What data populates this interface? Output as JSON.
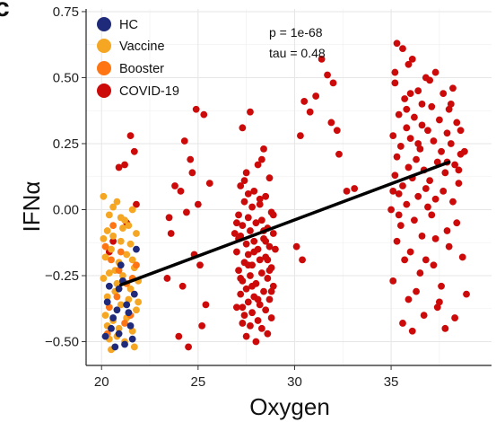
{
  "panel_letter": "c",
  "chart_data": {
    "type": "scatter",
    "xlabel": "Oxygen",
    "ylabel": "IFNα",
    "xlim": [
      19.2,
      40.2
    ],
    "ylim": [
      -0.59,
      0.76
    ],
    "x_ticks": [
      20,
      25,
      30,
      35
    ],
    "y_ticks": [
      -0.5,
      -0.25,
      0.0,
      0.25,
      0.5,
      0.75
    ],
    "y_tick_labels": [
      "−0.50",
      "−0.25",
      "0.00",
      "0.25",
      "0.50",
      "0.75"
    ],
    "grid": true,
    "legend_position": "top-left",
    "annotations": [
      "p = 1e-68",
      "tau = 0.48"
    ],
    "series": [
      {
        "name": "HC",
        "color": "#1f2a7a",
        "points": [
          [
            20.3,
            -0.35
          ],
          [
            20.6,
            -0.41
          ],
          [
            20.9,
            -0.47
          ],
          [
            21.2,
            -0.51
          ],
          [
            20.4,
            -0.29
          ],
          [
            21.5,
            -0.44
          ],
          [
            20.8,
            -0.38
          ],
          [
            21.7,
            -0.32
          ],
          [
            20.2,
            -0.48
          ],
          [
            21.1,
            -0.27
          ],
          [
            20.7,
            -0.52
          ],
          [
            21.4,
            -0.39
          ],
          [
            21.8,
            -0.15
          ],
          [
            21.0,
            -0.21
          ],
          [
            20.5,
            -0.45
          ],
          [
            21.6,
            -0.49
          ],
          [
            21.3,
            -0.36
          ],
          [
            20.9,
            -0.3
          ]
        ]
      },
      {
        "name": "Vaccine",
        "color": "#f5a623",
        "points": [
          [
            20.1,
            0.05
          ],
          [
            20.4,
            -0.02
          ],
          [
            20.8,
            0.03
          ],
          [
            21.2,
            -0.04
          ],
          [
            21.6,
            0.0
          ],
          [
            20.3,
            -0.08
          ],
          [
            20.6,
            -0.1
          ],
          [
            21.0,
            -0.12
          ],
          [
            21.4,
            -0.06
          ],
          [
            21.8,
            -0.09
          ],
          [
            20.2,
            -0.18
          ],
          [
            20.5,
            -0.15
          ],
          [
            20.9,
            -0.2
          ],
          [
            21.3,
            -0.17
          ],
          [
            21.7,
            -0.22
          ],
          [
            20.1,
            -0.26
          ],
          [
            20.4,
            -0.24
          ],
          [
            20.8,
            -0.28
          ],
          [
            21.1,
            -0.25
          ],
          [
            21.5,
            -0.3
          ],
          [
            21.9,
            -0.27
          ],
          [
            20.3,
            -0.33
          ],
          [
            20.7,
            -0.31
          ],
          [
            21.0,
            -0.36
          ],
          [
            21.4,
            -0.34
          ],
          [
            21.8,
            -0.38
          ],
          [
            20.2,
            -0.4
          ],
          [
            20.6,
            -0.42
          ],
          [
            20.9,
            -0.45
          ],
          [
            21.3,
            -0.41
          ],
          [
            21.6,
            -0.46
          ],
          [
            20.4,
            -0.49
          ],
          [
            20.8,
            -0.48
          ],
          [
            21.2,
            -0.5
          ],
          [
            21.7,
            -0.52
          ],
          [
            20.5,
            -0.53
          ],
          [
            21.0,
            -0.03
          ],
          [
            20.6,
            0.01
          ],
          [
            21.5,
            -0.13
          ],
          [
            20.1,
            -0.11
          ],
          [
            21.9,
            -0.35
          ],
          [
            20.3,
            -0.44
          ],
          [
            21.1,
            -0.07
          ],
          [
            20.7,
            -0.23
          ],
          [
            21.6,
            -0.19
          ]
        ]
      },
      {
        "name": "Booster",
        "color": "#ff7514",
        "points": [
          [
            20.2,
            -0.14
          ],
          [
            20.5,
            -0.19
          ],
          [
            20.9,
            -0.23
          ],
          [
            21.3,
            -0.28
          ],
          [
            21.7,
            -0.32
          ],
          [
            20.4,
            -0.37
          ],
          [
            20.8,
            -0.33
          ],
          [
            21.2,
            -0.43
          ],
          [
            21.6,
            -0.26
          ],
          [
            20.3,
            -0.47
          ],
          [
            21.0,
            -0.16
          ],
          [
            21.5,
            -0.4
          ],
          [
            20.6,
            -0.06
          ],
          [
            21.8,
            -0.21
          ]
        ]
      },
      {
        "name": "COVID-19",
        "color": "#cc0a0a",
        "points": [
          [
            21.5,
            0.28
          ],
          [
            21.2,
            0.17
          ],
          [
            20.9,
            0.16
          ],
          [
            21.7,
            0.22
          ],
          [
            20.6,
            -0.12
          ],
          [
            21.8,
            0.02
          ],
          [
            20.4,
            -0.16
          ],
          [
            21.3,
            -0.05
          ],
          [
            24.9,
            0.38
          ],
          [
            24.3,
            0.26
          ],
          [
            24.6,
            0.19
          ],
          [
            25.3,
            0.36
          ],
          [
            23.8,
            0.09
          ],
          [
            24.1,
            0.07
          ],
          [
            25.0,
            0.02
          ],
          [
            25.6,
            0.1
          ],
          [
            24.4,
            -0.01
          ],
          [
            23.6,
            -0.09
          ],
          [
            24.8,
            -0.17
          ],
          [
            25.1,
            -0.21
          ],
          [
            23.4,
            -0.26
          ],
          [
            24.2,
            -0.29
          ],
          [
            25.4,
            -0.36
          ],
          [
            24.0,
            -0.48
          ],
          [
            24.5,
            -0.52
          ],
          [
            25.2,
            -0.44
          ],
          [
            23.5,
            -0.03
          ],
          [
            24.7,
            0.14
          ],
          [
            27.7,
            0.37
          ],
          [
            27.3,
            0.31
          ],
          [
            28.4,
            0.23
          ],
          [
            28.1,
            0.17
          ],
          [
            27.5,
            0.14
          ],
          [
            28.7,
            0.12
          ],
          [
            27.2,
            0.09
          ],
          [
            27.9,
            0.07
          ],
          [
            28.5,
            0.05
          ],
          [
            27.4,
            0.03
          ],
          [
            28.2,
            0.02
          ],
          [
            27.8,
            0.01
          ],
          [
            28.8,
            -0.01
          ],
          [
            27.1,
            -0.02
          ],
          [
            27.6,
            -0.03
          ],
          [
            28.3,
            -0.04
          ],
          [
            28.0,
            -0.05
          ],
          [
            27.3,
            -0.06
          ],
          [
            28.6,
            -0.07
          ],
          [
            27.7,
            -0.08
          ],
          [
            28.9,
            -0.09
          ],
          [
            27.2,
            -0.1
          ],
          [
            28.4,
            -0.11
          ],
          [
            27.9,
            -0.12
          ],
          [
            27.5,
            -0.13
          ],
          [
            28.7,
            -0.14
          ],
          [
            28.1,
            -0.15
          ],
          [
            27.0,
            -0.16
          ],
          [
            27.6,
            -0.17
          ],
          [
            28.5,
            -0.18
          ],
          [
            28.2,
            -0.19
          ],
          [
            27.4,
            -0.2
          ],
          [
            27.8,
            -0.21
          ],
          [
            28.8,
            -0.22
          ],
          [
            27.1,
            -0.23
          ],
          [
            28.3,
            -0.24
          ],
          [
            27.7,
            -0.25
          ],
          [
            28.6,
            -0.26
          ],
          [
            27.3,
            -0.27
          ],
          [
            28.0,
            -0.28
          ],
          [
            28.9,
            -0.29
          ],
          [
            27.5,
            -0.3
          ],
          [
            28.4,
            -0.31
          ],
          [
            27.2,
            -0.32
          ],
          [
            27.9,
            -0.33
          ],
          [
            28.7,
            -0.34
          ],
          [
            27.6,
            -0.35
          ],
          [
            28.2,
            -0.36
          ],
          [
            27.0,
            -0.37
          ],
          [
            28.5,
            -0.38
          ],
          [
            27.8,
            -0.39
          ],
          [
            27.4,
            -0.4
          ],
          [
            28.8,
            -0.41
          ],
          [
            28.1,
            -0.42
          ],
          [
            27.3,
            -0.43
          ],
          [
            27.7,
            -0.44
          ],
          [
            28.3,
            -0.45
          ],
          [
            28.6,
            -0.47
          ],
          [
            27.5,
            -0.48
          ],
          [
            28.0,
            -0.5
          ],
          [
            28.9,
            -0.02
          ],
          [
            27.1,
            -0.11
          ],
          [
            28.6,
            -0.19
          ],
          [
            27.6,
            0.06
          ],
          [
            28.4,
            -0.08
          ],
          [
            27.2,
            -0.26
          ],
          [
            28.1,
            -0.34
          ],
          [
            27.9,
            -0.16
          ],
          [
            28.7,
            -0.23
          ],
          [
            27.4,
            0.11
          ],
          [
            28.3,
            0.19
          ],
          [
            27.0,
            -0.05
          ],
          [
            27.8,
            -0.29
          ],
          [
            28.5,
            -0.12
          ],
          [
            27.3,
            -0.37
          ],
          [
            28.2,
            0.04
          ],
          [
            27.6,
            -0.21
          ],
          [
            28.8,
            -0.31
          ],
          [
            29.0,
            -0.15
          ],
          [
            26.9,
            -0.09
          ],
          [
            31.4,
            0.57
          ],
          [
            31.7,
            0.51
          ],
          [
            31.1,
            0.43
          ],
          [
            32.0,
            0.48
          ],
          [
            30.5,
            0.41
          ],
          [
            30.8,
            0.37
          ],
          [
            30.3,
            0.28
          ],
          [
            31.9,
            0.33
          ],
          [
            32.3,
            0.21
          ],
          [
            32.7,
            0.07
          ],
          [
            33.1,
            0.08
          ],
          [
            30.1,
            -0.14
          ],
          [
            30.4,
            -0.19
          ],
          [
            32.2,
            0.3
          ],
          [
            35.3,
            0.63
          ],
          [
            35.6,
            0.61
          ],
          [
            36.1,
            0.57
          ],
          [
            35.9,
            0.55
          ],
          [
            36.8,
            0.5
          ],
          [
            37.3,
            0.52
          ],
          [
            35.2,
            0.48
          ],
          [
            36.4,
            0.45
          ],
          [
            37.7,
            0.44
          ],
          [
            38.2,
            0.46
          ],
          [
            35.7,
            0.42
          ],
          [
            36.6,
            0.4
          ],
          [
            37.1,
            0.39
          ],
          [
            38.0,
            0.38
          ],
          [
            35.4,
            0.36
          ],
          [
            36.2,
            0.35
          ],
          [
            37.5,
            0.34
          ],
          [
            38.4,
            0.33
          ],
          [
            35.8,
            0.31
          ],
          [
            36.9,
            0.3
          ],
          [
            37.9,
            0.29
          ],
          [
            35.1,
            0.28
          ],
          [
            36.0,
            0.27
          ],
          [
            37.2,
            0.26
          ],
          [
            38.1,
            0.25
          ],
          [
            35.5,
            0.24
          ],
          [
            36.5,
            0.23
          ],
          [
            37.6,
            0.22
          ],
          [
            38.6,
            0.21
          ],
          [
            35.3,
            0.2
          ],
          [
            36.3,
            0.19
          ],
          [
            37.4,
            0.18
          ],
          [
            38.3,
            0.17
          ],
          [
            35.9,
            0.16
          ],
          [
            36.7,
            0.15
          ],
          [
            37.8,
            0.14
          ],
          [
            35.2,
            0.13
          ],
          [
            36.1,
            0.12
          ],
          [
            37.0,
            0.11
          ],
          [
            38.5,
            0.1
          ],
          [
            35.6,
            0.09
          ],
          [
            36.8,
            0.08
          ],
          [
            37.7,
            0.07
          ],
          [
            35.4,
            0.06
          ],
          [
            36.4,
            0.05
          ],
          [
            37.3,
            0.04
          ],
          [
            38.2,
            0.03
          ],
          [
            35.8,
            0.02
          ],
          [
            36.9,
            0.01
          ],
          [
            35.0,
            0.0
          ],
          [
            37.1,
            -0.02
          ],
          [
            36.2,
            -0.04
          ],
          [
            35.5,
            -0.06
          ],
          [
            37.9,
            -0.08
          ],
          [
            36.6,
            -0.1
          ],
          [
            35.3,
            -0.12
          ],
          [
            38.0,
            -0.14
          ],
          [
            36.0,
            -0.16
          ],
          [
            35.7,
            -0.19
          ],
          [
            37.2,
            -0.21
          ],
          [
            36.5,
            -0.24
          ],
          [
            35.1,
            -0.27
          ],
          [
            37.6,
            -0.29
          ],
          [
            36.3,
            -0.31
          ],
          [
            35.9,
            -0.34
          ],
          [
            37.4,
            -0.37
          ],
          [
            36.7,
            -0.4
          ],
          [
            35.6,
            -0.43
          ],
          [
            37.8,
            -0.45
          ],
          [
            36.1,
            -0.46
          ],
          [
            38.6,
            0.3
          ],
          [
            38.8,
            0.22
          ],
          [
            38.4,
            -0.05
          ],
          [
            38.7,
            -0.18
          ],
          [
            38.9,
            -0.32
          ],
          [
            38.3,
            -0.41
          ],
          [
            38.1,
            0.4
          ],
          [
            35.2,
            0.52
          ],
          [
            36.0,
            0.44
          ],
          [
            37.0,
            0.49
          ],
          [
            35.4,
            -0.02
          ],
          [
            36.8,
            -0.19
          ],
          [
            37.5,
            -0.35
          ],
          [
            35.8,
            0.38
          ],
          [
            36.6,
            0.32
          ],
          [
            38.5,
            0.15
          ],
          [
            35.1,
            0.07
          ],
          [
            37.3,
            -0.11
          ],
          [
            36.4,
            0.25
          ],
          [
            37.9,
            0.18
          ]
        ]
      }
    ],
    "trend_line": {
      "x": [
        21.0,
        38.0
      ],
      "y": [
        -0.285,
        0.18
      ],
      "color": "#000000"
    }
  }
}
